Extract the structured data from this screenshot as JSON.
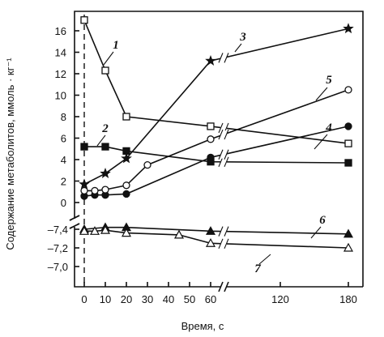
{
  "chart_data": {
    "type": "line",
    "title": "",
    "xlabel": "Время, с",
    "ylabel": "Содержание метаболитов, ммоль · кг⁻¹",
    "x_ticks": [
      0,
      10,
      20,
      30,
      40,
      50,
      60,
      120,
      180
    ],
    "x_axis_break_after": 60,
    "y_upper_ticks": [
      0,
      2,
      4,
      6,
      8,
      10,
      12,
      14,
      16
    ],
    "y_upper_ylim": [
      -0.6,
      17
    ],
    "y_lower_ticks": [
      -7.0,
      -7.2,
      -7.4
    ],
    "y_lower_tick_labels": [
      "–7,0",
      "–7,2",
      "–7,4"
    ],
    "y_lower_ylim": [
      -6.9,
      -7.45
    ],
    "series": [
      {
        "label": "1",
        "marker": "open-square",
        "panel": "upper",
        "x": [
          0,
          10,
          20,
          60,
          180
        ],
        "y": [
          17.0,
          12.3,
          8.0,
          7.1,
          5.5
        ]
      },
      {
        "label": "2",
        "marker": "filled-square",
        "panel": "upper",
        "x": [
          0,
          10,
          20,
          60,
          180
        ],
        "y": [
          5.2,
          5.2,
          4.8,
          3.8,
          3.7
        ]
      },
      {
        "label": "3",
        "marker": "filled-star",
        "panel": "upper",
        "x": [
          0,
          10,
          20,
          60,
          180
        ],
        "y": [
          1.7,
          2.7,
          4.1,
          13.2,
          16.2
        ]
      },
      {
        "label": "4",
        "marker": "filled-circle",
        "panel": "upper",
        "x": [
          0,
          5,
          10,
          20,
          60,
          180
        ],
        "y": [
          0.6,
          0.7,
          0.7,
          0.8,
          4.2,
          7.1
        ]
      },
      {
        "label": "5",
        "marker": "open-circle",
        "panel": "upper",
        "x": [
          0,
          5,
          10,
          20,
          30,
          60,
          180
        ],
        "y": [
          1.1,
          1.1,
          1.2,
          1.6,
          3.5,
          5.9,
          10.5
        ]
      },
      {
        "label": "6",
        "marker": "filled-triangle",
        "panel": "lower",
        "x": [
          0,
          10,
          20,
          60,
          180
        ],
        "y": [
          -7.4,
          -7.42,
          -7.42,
          -7.38,
          -7.35
        ]
      },
      {
        "label": "7",
        "marker": "open-triangle",
        "panel": "lower",
        "x": [
          0,
          5,
          10,
          20,
          45,
          60,
          180
        ],
        "y": [
          -7.38,
          -7.38,
          -7.39,
          -7.36,
          -7.34,
          -7.25,
          -7.2
        ]
      }
    ],
    "grid": false,
    "legend": "none"
  }
}
